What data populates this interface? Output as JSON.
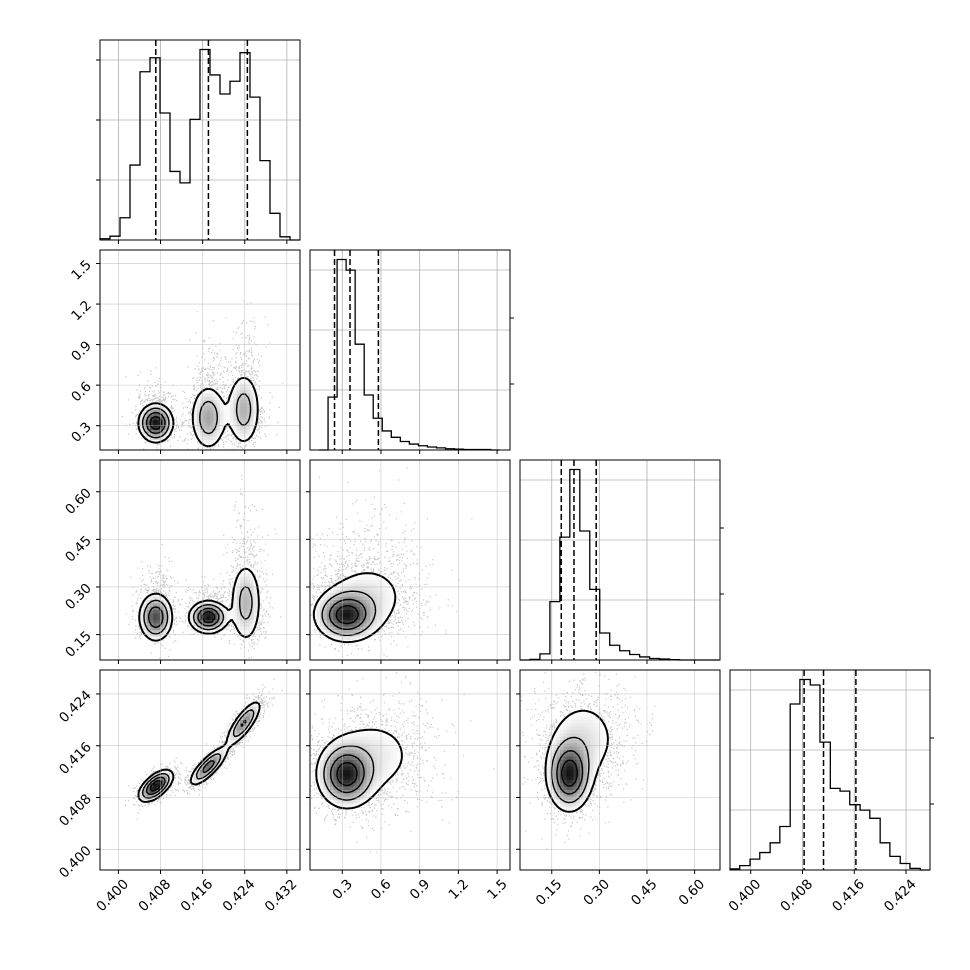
{
  "chart_data": {
    "type": "corner",
    "parameters": [
      "",
      "",
      "",
      ""
    ],
    "style": {
      "grid": true,
      "grid_color": "#b0b0b0",
      "hist_color": "#000000",
      "quantile_line_style": "dashed",
      "quantiles": [
        0.16,
        0.5,
        0.84
      ],
      "scatter_color": "#000000",
      "contour_color": "#000000"
    },
    "diagonal": [
      {
        "parameter_index": 0,
        "type": "step_histogram",
        "xlim": [
          0.3965,
          0.4345
        ],
        "x_ticks": [
          0.4,
          0.408,
          0.416,
          0.424,
          0.432
        ],
        "x_tick_labels": [
          "0.400",
          "0.408",
          "0.416",
          "0.424",
          "0.432"
        ],
        "bin_edges": [
          0.3965,
          0.3984,
          0.4003,
          0.4022,
          0.4041,
          0.406,
          0.4079,
          0.4098,
          0.4117,
          0.4136,
          0.4155,
          0.4174,
          0.4193,
          0.4212,
          0.4231,
          0.425,
          0.4269,
          0.4288,
          0.4307,
          0.4326,
          0.4345
        ],
        "counts": [
          2,
          6,
          35,
          118,
          265,
          287,
          200,
          108,
          90,
          190,
          300,
          260,
          230,
          250,
          295,
          225,
          125,
          42,
          5,
          0
        ],
        "quantile_lines": [
          0.4071,
          0.4171,
          0.4245
        ]
      },
      {
        "parameter_index": 1,
        "type": "step_histogram",
        "xlim": [
          0.05,
          1.6
        ],
        "x_ticks": [
          0.3,
          0.6,
          0.9,
          1.2,
          1.5
        ],
        "x_tick_labels": [
          "0.3",
          "0.6",
          "0.9",
          "1.2",
          "1.5"
        ],
        "bin_edges": [
          0.12,
          0.19,
          0.26,
          0.33,
          0.4,
          0.47,
          0.54,
          0.61,
          0.68,
          0.75,
          0.82,
          0.89,
          0.96,
          1.03,
          1.1,
          1.17,
          1.24,
          1.31,
          1.38,
          1.45,
          1.52
        ],
        "counts": [
          0,
          125,
          450,
          425,
          250,
          130,
          75,
          45,
          30,
          20,
          14,
          10,
          7,
          5,
          3,
          2,
          1,
          1,
          1,
          0
        ],
        "quantile_lines": [
          0.24,
          0.36,
          0.58
        ]
      },
      {
        "parameter_index": 2,
        "type": "step_histogram",
        "xlim": [
          0.05,
          0.68
        ],
        "x_ticks": [
          0.15,
          0.3,
          0.45,
          0.6
        ],
        "x_tick_labels": [
          "0.15",
          "0.30",
          "0.45",
          "0.60"
        ],
        "bin_edges": [
          0.05,
          0.0814,
          0.1128,
          0.1442,
          0.1756,
          0.207,
          0.2384,
          0.2698,
          0.3012,
          0.3326,
          0.364,
          0.3954,
          0.4268,
          0.4582,
          0.4896,
          0.521,
          0.5524,
          0.5838,
          0.6152,
          0.6466,
          0.678
        ],
        "counts": [
          0,
          2,
          20,
          190,
          400,
          620,
          420,
          230,
          88,
          48,
          30,
          18,
          10,
          5,
          3,
          1,
          0,
          0,
          0,
          0
        ],
        "quantile_lines": [
          0.18,
          0.22,
          0.29
        ]
      },
      {
        "parameter_index": 3,
        "type": "step_histogram",
        "xlim": [
          0.3968,
          0.4277
        ],
        "x_ticks": [
          0.4,
          0.408,
          0.416,
          0.424
        ],
        "x_tick_labels": [
          "0.400",
          "0.408",
          "0.416",
          "0.424"
        ],
        "bin_edges": [
          0.3968,
          0.3983,
          0.3999,
          0.4014,
          0.403,
          0.4045,
          0.4061,
          0.4076,
          0.4092,
          0.4107,
          0.4123,
          0.4138,
          0.4153,
          0.4169,
          0.4184,
          0.42,
          0.4215,
          0.4231,
          0.4246,
          0.4262,
          0.4277
        ],
        "counts": [
          2,
          8,
          20,
          32,
          50,
          80,
          305,
          350,
          340,
          235,
          150,
          145,
          120,
          110,
          95,
          50,
          25,
          12,
          3,
          0
        ],
        "quantile_lines": [
          0.40825,
          0.41125,
          0.41625
        ]
      }
    ],
    "off_diagonal": [
      {
        "x_parameter_index": 0,
        "y_parameter_index": 1,
        "type": "2d_density_scatter_contour",
        "ylim": [
          0.12,
          1.6
        ],
        "y_ticks": [
          0.3,
          0.6,
          0.9,
          1.2,
          1.5
        ],
        "y_tick_labels": [
          "0.3",
          "0.6",
          "0.9",
          "1.2",
          "1.5"
        ],
        "modes": [
          {
            "x": 0.4071,
            "y": 0.32,
            "sx": 0.0016,
            "sy": 0.07,
            "w": 0.35
          },
          {
            "x": 0.4171,
            "y": 0.36,
            "sx": 0.0018,
            "sy": 0.13,
            "w": 0.33
          },
          {
            "x": 0.4238,
            "y": 0.42,
            "sx": 0.0017,
            "sy": 0.15,
            "w": 0.32
          }
        ]
      },
      {
        "x_parameter_index": 0,
        "y_parameter_index": 2,
        "type": "2d_density_scatter_contour",
        "ylim": [
          0.07,
          0.7
        ],
        "y_ticks": [
          0.15,
          0.3,
          0.45,
          0.6
        ],
        "y_tick_labels": [
          "0.15",
          "0.30",
          "0.45",
          "0.60"
        ],
        "modes": [
          {
            "x": 0.4071,
            "y": 0.205,
            "sx": 0.0016,
            "sy": 0.038,
            "w": 0.35
          },
          {
            "x": 0.4171,
            "y": 0.205,
            "sx": 0.0018,
            "sy": 0.025,
            "w": 0.33
          },
          {
            "x": 0.4242,
            "y": 0.25,
            "sx": 0.0016,
            "sy": 0.07,
            "w": 0.32
          }
        ]
      },
      {
        "x_parameter_index": 1,
        "y_parameter_index": 2,
        "type": "2d_density_scatter_contour",
        "modes": [
          {
            "x": 0.33,
            "y": 0.21,
            "sx": 0.12,
            "sy": 0.04,
            "w": 0.6
          },
          {
            "x": 0.5,
            "y": 0.27,
            "sx": 0.2,
            "sy": 0.07,
            "w": 0.4
          }
        ]
      },
      {
        "x_parameter_index": 0,
        "y_parameter_index": 3,
        "type": "2d_density_scatter_contour",
        "ylim": [
          0.3968,
          0.4277
        ],
        "y_ticks": [
          0.4,
          0.408,
          0.416,
          0.424
        ],
        "y_tick_labels": [
          "0.400",
          "0.408",
          "0.416",
          "0.424"
        ],
        "modes": [
          {
            "x": 0.4071,
            "y": 0.4098,
            "sx": 0.0016,
            "sy": 0.0012,
            "w": 0.35,
            "corr": 0.6
          },
          {
            "x": 0.4171,
            "y": 0.4128,
            "sx": 0.0018,
            "sy": 0.0015,
            "w": 0.33,
            "corr": 0.8
          },
          {
            "x": 0.4238,
            "y": 0.4195,
            "sx": 0.0017,
            "sy": 0.0018,
            "w": 0.32,
            "corr": 0.8
          }
        ]
      },
      {
        "x_parameter_index": 1,
        "y_parameter_index": 3,
        "type": "2d_density_scatter_contour",
        "modes": [
          {
            "x": 0.33,
            "y": 0.4115,
            "sx": 0.11,
            "sy": 0.0025,
            "w": 0.6
          },
          {
            "x": 0.55,
            "y": 0.4145,
            "sx": 0.22,
            "sy": 0.004,
            "w": 0.4
          }
        ]
      },
      {
        "x_parameter_index": 2,
        "y_parameter_index": 3,
        "type": "2d_density_scatter_contour",
        "modes": [
          {
            "x": 0.205,
            "y": 0.4115,
            "sx": 0.035,
            "sy": 0.0028,
            "w": 0.6
          },
          {
            "x": 0.25,
            "y": 0.417,
            "sx": 0.07,
            "sy": 0.004,
            "w": 0.4
          }
        ]
      }
    ]
  }
}
